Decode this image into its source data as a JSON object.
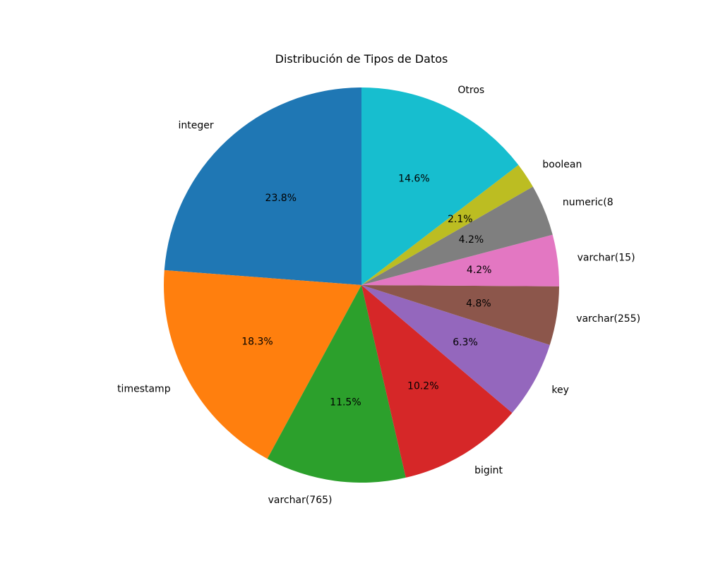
{
  "chart_data": {
    "type": "pie",
    "title": "Distribución de Tipos de Datos",
    "start_angle": 90,
    "direction": "counterclockwise",
    "slices": [
      {
        "label": "integer",
        "value": 23.8,
        "pct_label": "23.8%",
        "color": "#1f77b4"
      },
      {
        "label": "timestamp",
        "value": 18.3,
        "pct_label": "18.3%",
        "color": "#ff7f0e"
      },
      {
        "label": "varchar(765)",
        "value": 11.5,
        "pct_label": "11.5%",
        "color": "#2ca02c"
      },
      {
        "label": "bigint",
        "value": 10.2,
        "pct_label": "10.2%",
        "color": "#d62728"
      },
      {
        "label": "key",
        "value": 6.3,
        "pct_label": "6.3%",
        "color": "#9467bd"
      },
      {
        "label": "varchar(255)",
        "value": 4.8,
        "pct_label": "4.8%",
        "color": "#8c564b"
      },
      {
        "label": "varchar(15)",
        "value": 4.2,
        "pct_label": "4.2%",
        "color": "#e377c2"
      },
      {
        "label": "numeric(8",
        "value": 4.2,
        "pct_label": "4.2%",
        "color": "#7f7f7f"
      },
      {
        "label": "boolean",
        "value": 2.1,
        "pct_label": "2.1%",
        "color": "#bcbd22"
      },
      {
        "label": "Otros",
        "value": 14.6,
        "pct_label": "14.6%",
        "color": "#17becf"
      }
    ]
  }
}
